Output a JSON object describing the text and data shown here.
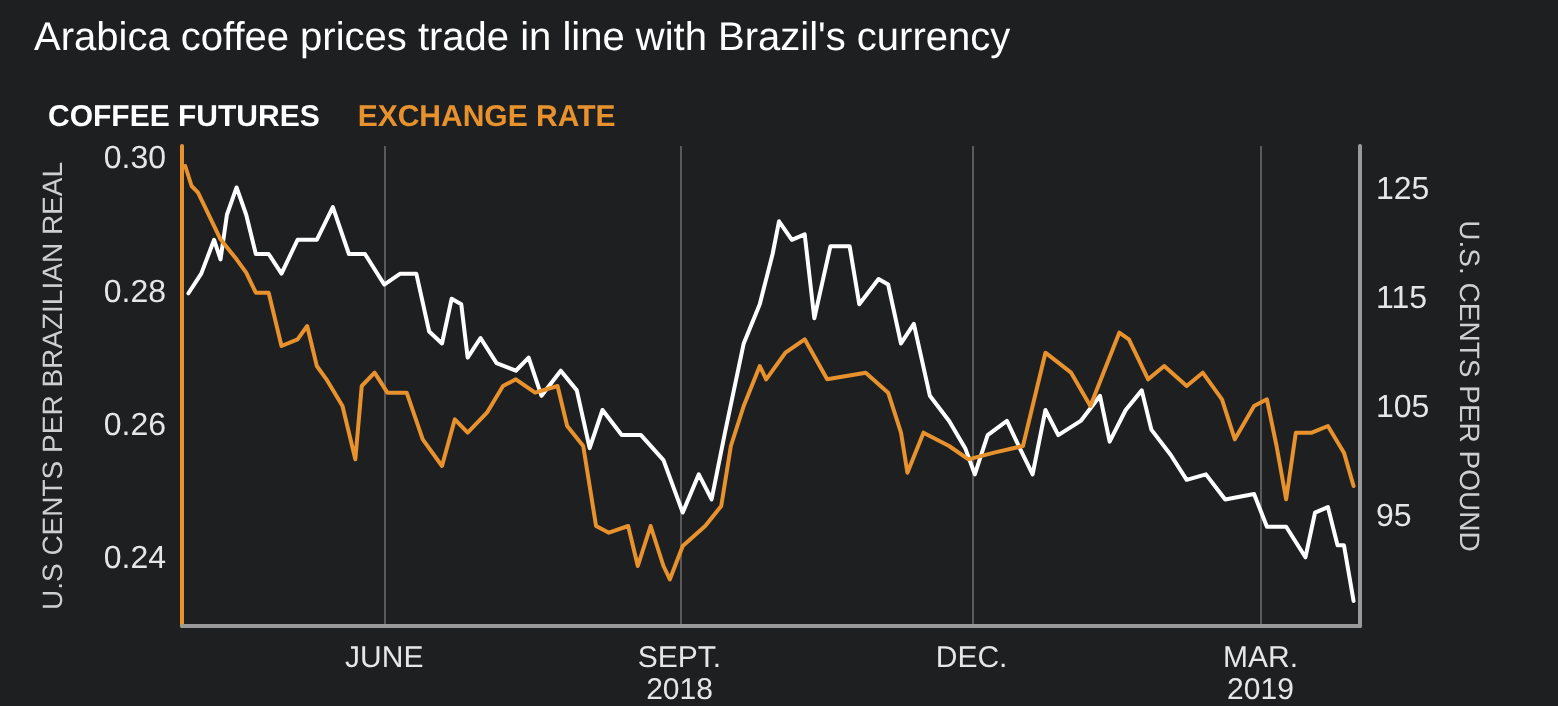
{
  "chart_data": {
    "type": "line",
    "title": "Arabica coffee prices trade in line with Brazil's currency",
    "ylabel": "U.S CENTS PER BRAZILIAN REAL",
    "y2label": "U.S. CENTS PER POUND",
    "xlim": [
      "2018-03-30",
      "2019-04-01"
    ],
    "xticks": [
      {
        "value": "2018-06-01",
        "label": "JUNE"
      },
      {
        "value": "2018-09-01",
        "label": "SEPT.\n2018"
      },
      {
        "value": "2018-12-01",
        "label": "DEC."
      },
      {
        "value": "2019-03-01",
        "label": "MAR.\n2019"
      }
    ],
    "ylim": [
      0.23,
      0.302
    ],
    "yticks": [
      0.24,
      0.26,
      0.28,
      {
        "value": 0.3,
        "label": "0.30"
      }
    ],
    "y2lim": [
      85,
      129
    ],
    "y2ticks": [
      95,
      105,
      115,
      125
    ],
    "grid": "x",
    "legend": "top left",
    "marker": "none",
    "line_style": "solid",
    "series": [
      {
        "name": "COFFEE FUTURES",
        "color": "#ffffff",
        "axis": "y2",
        "x": [
          "2018-04-01",
          "2018-04-05",
          "2018-04-09",
          "2018-04-11",
          "2018-04-13",
          "2018-04-16",
          "2018-04-19",
          "2018-04-22",
          "2018-04-26",
          "2018-04-30",
          "2018-05-05",
          "2018-05-11",
          "2018-05-16",
          "2018-05-21",
          "2018-05-26",
          "2018-06-01",
          "2018-06-06",
          "2018-06-11",
          "2018-06-15",
          "2018-06-19",
          "2018-06-22",
          "2018-06-25",
          "2018-06-27",
          "2018-07-01",
          "2018-07-06",
          "2018-07-12",
          "2018-07-16",
          "2018-07-20",
          "2018-07-26",
          "2018-07-31",
          "2018-08-04",
          "2018-08-08",
          "2018-08-14",
          "2018-08-20",
          "2018-08-27",
          "2018-09-02",
          "2018-09-07",
          "2018-09-11",
          "2018-09-15",
          "2018-09-21",
          "2018-09-26",
          "2018-09-30",
          "2018-10-02",
          "2018-10-06",
          "2018-10-10",
          "2018-10-13",
          "2018-10-18",
          "2018-10-24",
          "2018-10-27",
          "2018-11-02",
          "2018-11-05",
          "2018-11-09",
          "2018-11-13",
          "2018-11-18",
          "2018-11-24",
          "2018-11-29",
          "2018-12-02",
          "2018-12-06",
          "2018-12-12",
          "2018-12-16",
          "2018-12-20",
          "2018-12-24",
          "2018-12-28",
          "2019-01-04",
          "2019-01-10",
          "2019-01-13",
          "2019-01-18",
          "2019-01-23",
          "2019-01-26",
          "2019-02-01",
          "2019-02-06",
          "2019-02-12",
          "2019-02-18",
          "2019-02-27",
          "2019-03-03",
          "2019-03-09",
          "2019-03-15",
          "2019-03-18",
          "2019-03-22",
          "2019-03-25",
          "2019-03-27",
          "2019-03-30"
        ],
        "values": [
          115.5,
          117.3,
          120.4,
          118.6,
          122.7,
          125.2,
          122.7,
          119.1,
          119.1,
          117.3,
          120.4,
          120.4,
          123.4,
          119.1,
          119.1,
          116.3,
          117.3,
          117.3,
          112,
          110.9,
          115,
          114.5,
          109.6,
          111.4,
          109.1,
          108.4,
          109.6,
          106.1,
          108.4,
          106.6,
          101.3,
          104.8,
          102.5,
          102.5,
          100.2,
          95.4,
          98.9,
          96.6,
          102.5,
          110.9,
          114.5,
          119.1,
          122.1,
          120.4,
          120.9,
          113.2,
          119.8,
          119.8,
          114.5,
          116.8,
          116.3,
          110.9,
          112.7,
          106.1,
          103.8,
          101.3,
          98.9,
          102.5,
          103.8,
          101.3,
          98.9,
          104.8,
          102.5,
          103.8,
          106.1,
          101.9,
          104.8,
          106.6,
          103,
          100.7,
          98.4,
          98.9,
          96.6,
          97.1,
          94.1,
          94.1,
          91.3,
          95.4,
          95.9,
          92.4,
          92.4,
          87.3
        ]
      },
      {
        "name": "EXCHANGE RATE",
        "color": "#e8922e",
        "x": [
          "2018-03-31",
          "2018-04-02",
          "2018-04-04",
          "2018-04-07",
          "2018-04-11",
          "2018-04-16",
          "2018-04-19",
          "2018-04-22",
          "2018-04-26",
          "2018-04-30",
          "2018-05-05",
          "2018-05-08",
          "2018-05-11",
          "2018-05-14",
          "2018-05-19",
          "2018-05-23",
          "2018-05-25",
          "2018-05-29",
          "2018-06-02",
          "2018-06-08",
          "2018-06-13",
          "2018-06-19",
          "2018-06-23",
          "2018-06-27",
          "2018-07-03",
          "2018-07-08",
          "2018-07-12",
          "2018-07-18",
          "2018-07-25",
          "2018-07-28",
          "2018-08-02",
          "2018-08-06",
          "2018-08-10",
          "2018-08-16",
          "2018-08-19",
          "2018-08-23",
          "2018-08-27",
          "2018-08-29",
          "2018-09-02",
          "2018-09-09",
          "2018-09-14",
          "2018-09-17",
          "2018-09-21",
          "2018-09-26",
          "2018-09-28",
          "2018-10-04",
          "2018-10-10",
          "2018-10-17",
          "2018-10-29",
          "2018-11-05",
          "2018-11-09",
          "2018-11-11",
          "2018-11-16",
          "2018-11-24",
          "2018-11-30",
          "2018-12-08",
          "2018-12-17",
          "2018-12-24",
          "2019-01-01",
          "2019-01-07",
          "2019-01-16",
          "2019-01-19",
          "2019-01-25",
          "2019-01-30",
          "2019-02-06",
          "2019-02-11",
          "2019-02-17",
          "2019-02-21",
          "2019-02-27",
          "2019-03-03",
          "2019-03-06",
          "2019-03-09",
          "2019-03-12",
          "2019-03-17",
          "2019-03-22",
          "2019-03-27",
          "2019-03-30"
        ],
        "values": [
          0.299,
          0.296,
          0.295,
          0.292,
          0.288,
          0.285,
          0.283,
          0.28,
          0.28,
          0.272,
          0.273,
          0.275,
          0.269,
          0.267,
          0.263,
          0.255,
          0.266,
          0.268,
          0.265,
          0.265,
          0.258,
          0.254,
          0.261,
          0.259,
          0.262,
          0.266,
          0.267,
          0.265,
          0.266,
          0.26,
          0.257,
          0.245,
          0.244,
          0.245,
          0.239,
          0.245,
          0.239,
          0.237,
          0.242,
          0.245,
          0.248,
          0.257,
          0.263,
          0.269,
          0.267,
          0.271,
          0.273,
          0.267,
          0.268,
          0.265,
          0.259,
          0.253,
          0.259,
          0.257,
          0.255,
          0.256,
          0.257,
          0.271,
          0.268,
          0.263,
          0.274,
          0.273,
          0.267,
          0.269,
          0.266,
          0.268,
          0.264,
          0.258,
          0.263,
          0.264,
          0.257,
          0.249,
          0.259,
          0.259,
          0.26,
          0.256,
          0.251
        ]
      }
    ]
  }
}
